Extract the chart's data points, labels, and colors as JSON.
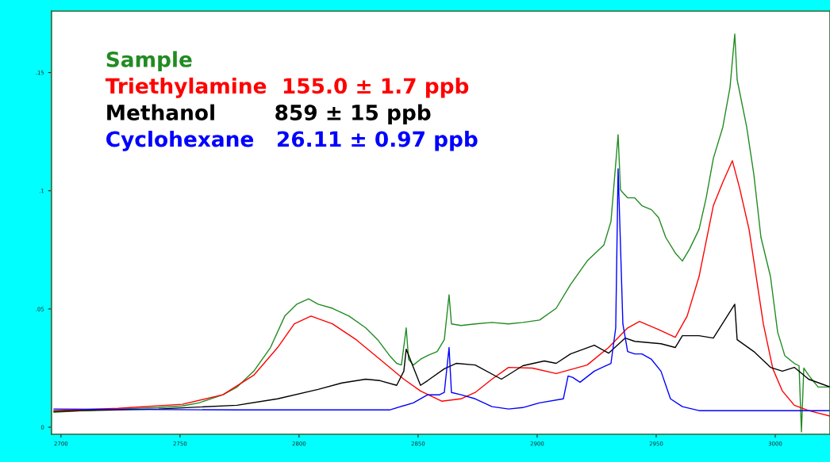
{
  "chart_data": {
    "type": "line",
    "legend": "top left",
    "grid": false,
    "marker": "none",
    "line_style": "solid",
    "xlim": [
      2696,
      3023
    ],
    "ylim": [
      -0.003,
      0.176
    ],
    "xticks": [
      2700,
      2750,
      2800,
      2850,
      2900,
      2950,
      3000
    ],
    "yticks": [
      {
        "value": 0,
        "label": "0"
      },
      {
        "value": 0.05,
        "label": ".05"
      },
      {
        "value": 0.1,
        "label": ".1"
      },
      {
        "value": 0.15,
        "label": ".15"
      }
    ],
    "series": [
      {
        "name": "Sample",
        "color": "#228b22",
        "x": [
          2697,
          2708,
          2724,
          2741,
          2751,
          2758,
          2768,
          2774,
          2781,
          2788,
          2794,
          2799,
          2804,
          2808,
          2814,
          2821,
          2828,
          2833,
          2838,
          2841,
          2843,
          2845,
          2846,
          2848,
          2851,
          2854,
          2858,
          2861,
          2863,
          2864,
          2868,
          2874,
          2881,
          2888,
          2894,
          2901,
          2908,
          2914,
          2921,
          2928,
          2931,
          2934,
          2935,
          2938,
          2941,
          2944,
          2948,
          2951,
          2954,
          2958,
          2961,
          2964,
          2968,
          2971,
          2974,
          2978,
          2981,
          2983,
          2984,
          2988,
          2991,
          2994,
          2998,
          3001,
          3004,
          3008,
          3010,
          3011,
          3012,
          3014,
          3018,
          3023
        ],
        "values": [
          0.0063,
          0.007,
          0.0077,
          0.0083,
          0.009,
          0.0103,
          0.0137,
          0.017,
          0.0237,
          0.0337,
          0.047,
          0.052,
          0.0543,
          0.052,
          0.0503,
          0.047,
          0.042,
          0.037,
          0.0303,
          0.027,
          0.0263,
          0.042,
          0.0287,
          0.0263,
          0.0287,
          0.0303,
          0.032,
          0.037,
          0.056,
          0.0437,
          0.043,
          0.0437,
          0.0443,
          0.0437,
          0.0443,
          0.0453,
          0.0503,
          0.0603,
          0.0703,
          0.077,
          0.087,
          0.1237,
          0.1003,
          0.097,
          0.097,
          0.0937,
          0.092,
          0.0887,
          0.0803,
          0.0737,
          0.0703,
          0.0753,
          0.0837,
          0.097,
          0.1137,
          0.127,
          0.1437,
          0.1663,
          0.147,
          0.127,
          0.107,
          0.0803,
          0.0637,
          0.0403,
          0.0303,
          0.027,
          0.026,
          -0.002,
          0.025,
          0.022,
          0.017,
          0.017
        ]
      },
      {
        "name": "Triethylamine  155.0 ± 1.7 ppb",
        "color": "#ff0000",
        "x": [
          2697,
          2724,
          2751,
          2768,
          2781,
          2791,
          2798,
          2805,
          2814,
          2824,
          2834,
          2844,
          2851,
          2860,
          2868,
          2874,
          2881,
          2888,
          2898,
          2908,
          2921,
          2930,
          2938,
          2943,
          2951,
          2958,
          2963,
          2968,
          2974,
          2978,
          2982,
          2985,
          2989,
          2992,
          2995,
          2999,
          3003,
          3008,
          3014,
          3023
        ],
        "values": [
          0.007,
          0.008,
          0.0097,
          0.0137,
          0.022,
          0.0337,
          0.0437,
          0.047,
          0.0437,
          0.037,
          0.0287,
          0.0203,
          0.0153,
          0.011,
          0.012,
          0.0147,
          0.0203,
          0.0253,
          0.025,
          0.0227,
          0.0263,
          0.0337,
          0.042,
          0.0447,
          0.0413,
          0.038,
          0.047,
          0.0637,
          0.0937,
          0.1037,
          0.1127,
          0.1013,
          0.0837,
          0.0637,
          0.0437,
          0.0247,
          0.0153,
          0.0093,
          0.007,
          0.0047
        ]
      },
      {
        "name": "Methanol        859 ± 15 ppb",
        "color": "#000000",
        "x": [
          2697,
          2741,
          2774,
          2791,
          2808,
          2818,
          2828,
          2834,
          2841,
          2844,
          2845,
          2848,
          2851,
          2854,
          2861,
          2866,
          2874,
          2885,
          2894,
          2903,
          2908,
          2914,
          2924,
          2930,
          2937,
          2941,
          2952,
          2958,
          2961,
          2968,
          2974,
          2983,
          2984,
          2991,
          2998,
          3003,
          3008,
          3014,
          3023
        ],
        "values": [
          0.0067,
          0.0077,
          0.0093,
          0.012,
          0.016,
          0.0187,
          0.0203,
          0.0197,
          0.0177,
          0.0237,
          0.033,
          0.0253,
          0.0177,
          0.0197,
          0.0247,
          0.027,
          0.0263,
          0.0203,
          0.026,
          0.028,
          0.027,
          0.031,
          0.0347,
          0.0313,
          0.0377,
          0.0363,
          0.0353,
          0.0337,
          0.0387,
          0.0387,
          0.0377,
          0.052,
          0.037,
          0.032,
          0.0253,
          0.0237,
          0.0253,
          0.0203,
          0.017
        ]
      },
      {
        "name": "Cyclohexane   26.11 ± 0.97 ppb",
        "color": "#0000ff",
        "x": [
          2697,
          2774,
          2838,
          2848,
          2854,
          2859,
          2861,
          2863,
          2864,
          2868,
          2874,
          2881,
          2888,
          2894,
          2901,
          2911,
          2913,
          2915,
          2918,
          2924,
          2931,
          2933,
          2934,
          2935,
          2936,
          2938,
          2941,
          2944,
          2948,
          2952,
          2956,
          2961,
          2968,
          2974,
          3023
        ],
        "values": [
          0.0077,
          0.0073,
          0.0073,
          0.0103,
          0.0137,
          0.0137,
          0.0147,
          0.0337,
          0.0147,
          0.0137,
          0.012,
          0.0087,
          0.0077,
          0.0083,
          0.0103,
          0.012,
          0.0217,
          0.021,
          0.019,
          0.0237,
          0.027,
          0.042,
          0.1093,
          0.077,
          0.0437,
          0.032,
          0.031,
          0.031,
          0.0287,
          0.0237,
          0.012,
          0.0087,
          0.007,
          0.007,
          0.007
        ]
      }
    ]
  }
}
